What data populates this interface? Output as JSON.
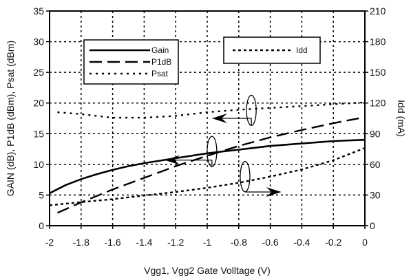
{
  "chart_data": {
    "type": "line",
    "title": "",
    "xlabel": "Vgg1, Vgg2  Gate Volltage (V)",
    "ylabel_left": "GAIN (dB), P1dB (dBm), Psat (dBm)",
    "ylabel_right": "Idd (mA)",
    "xlim": [
      -2,
      0
    ],
    "ylim_left": [
      0,
      35
    ],
    "ylim_right": [
      0,
      210
    ],
    "grid": true,
    "x_ticks": [
      "-2",
      "-1.8",
      "-1.6",
      "-1.4",
      "-1.2",
      "-1",
      "-0.8",
      "-0.6",
      "-0.4",
      "-0.2",
      "0"
    ],
    "y_left_ticks": [
      "0",
      "5",
      "10",
      "15",
      "20",
      "25",
      "30",
      "35"
    ],
    "y_right_ticks": [
      "0",
      "30",
      "60",
      "90",
      "120",
      "150",
      "180",
      "210"
    ],
    "series": [
      {
        "name": "Gain",
        "axis": "left",
        "dash": "solid",
        "x": [
          -2,
          -1.9,
          -1.8,
          -1.7,
          -1.6,
          -1.5,
          -1.4,
          -1.3,
          -1.2,
          -1.1,
          -1,
          -0.9,
          -0.8,
          -0.7,
          -0.6,
          -0.5,
          -0.4,
          -0.3,
          -0.2,
          -0.1,
          0
        ],
        "y": [
          5.3,
          6.6,
          7.6,
          8.4,
          9.1,
          9.7,
          10.2,
          10.6,
          11.0,
          11.4,
          11.8,
          12.1,
          12.4,
          12.7,
          13.0,
          13.2,
          13.4,
          13.6,
          13.8,
          13.9,
          14.0
        ]
      },
      {
        "name": "P1dB",
        "axis": "left",
        "dash": "longdash",
        "x": [
          -1.95,
          -1.8,
          -1.6,
          -1.4,
          -1.2,
          -1,
          -0.8,
          -0.6,
          -0.4,
          -0.2,
          0
        ],
        "y": [
          2.1,
          3.8,
          5.9,
          7.8,
          9.7,
          11.4,
          13.0,
          14.4,
          15.6,
          16.7,
          17.7
        ]
      },
      {
        "name": "Psat",
        "axis": "left",
        "dash": "dotted",
        "x": [
          -1.95,
          -1.8,
          -1.6,
          -1.4,
          -1.2,
          -1,
          -0.8,
          -0.6,
          -0.4,
          -0.2,
          0
        ],
        "y": [
          18.5,
          18.2,
          17.6,
          17.6,
          17.9,
          18.5,
          18.9,
          19.2,
          19.5,
          19.8,
          20.1
        ]
      },
      {
        "name": "Idd",
        "axis": "right",
        "dash": "shortdash",
        "x": [
          -2,
          -1.8,
          -1.6,
          -1.4,
          -1.2,
          -1,
          -0.8,
          -0.6,
          -0.4,
          -0.2,
          0
        ],
        "y": [
          20,
          23,
          26,
          29.5,
          33,
          37,
          42,
          48,
          55,
          64,
          76
        ]
      }
    ],
    "legend_left": {
      "placement": "top-left",
      "entries": [
        {
          "label": "Gain",
          "dash": "solid"
        },
        {
          "label": "P1dB",
          "dash": "longdash"
        },
        {
          "label": "Psat",
          "dash": "dotted"
        }
      ]
    },
    "legend_right": {
      "placement": "top-right",
      "entries": [
        {
          "label": "Idd",
          "dash": "shortdash"
        }
      ]
    },
    "annotations": [
      {
        "marks": "Psat",
        "axis": "left",
        "ellipse": {
          "x": -0.72,
          "y": 18.8
        },
        "arrow_from": {
          "x": -0.72,
          "y": 17.5
        },
        "arrow_to": {
          "x": -0.97,
          "y": 17.5
        }
      },
      {
        "marks": "Gain and P1dB",
        "axis": "left",
        "ellipse": {
          "x": -0.97,
          "y": 12.1
        },
        "arrow_from": {
          "x": -0.97,
          "y": 10.7
        },
        "arrow_to": {
          "x": -1.27,
          "y": 10.7
        }
      },
      {
        "marks": "Idd",
        "axis": "right",
        "ellipse": {
          "x": -0.76,
          "y": 48
        },
        "arrow_from": {
          "x": -0.76,
          "y": 33
        },
        "arrow_to": {
          "x": -0.53,
          "y": 33
        }
      }
    ]
  }
}
